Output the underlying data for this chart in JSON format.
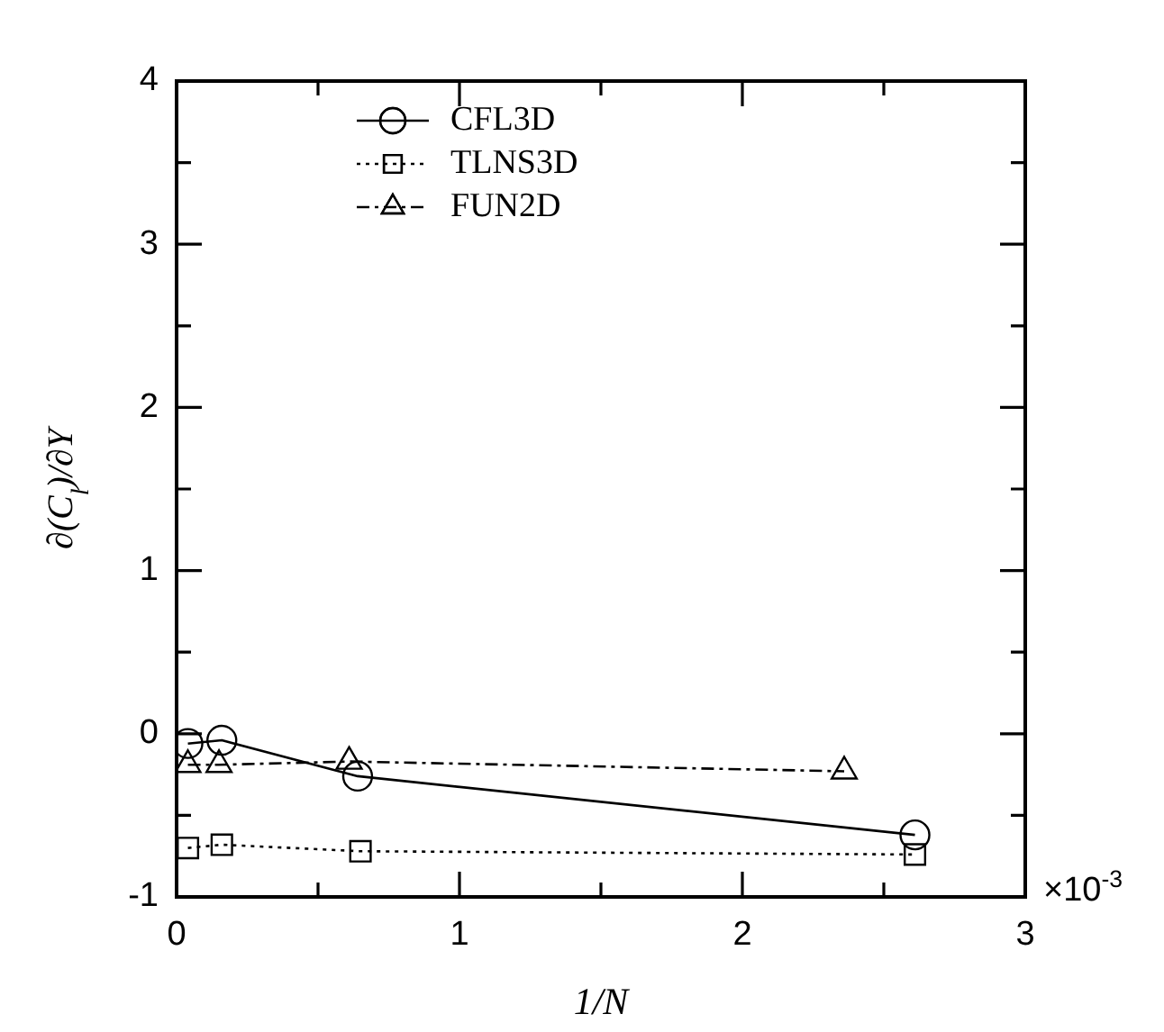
{
  "chart_data": {
    "type": "line",
    "xlabel": "1/N",
    "ylabel": "∂(C$_{l}$)/∂Y",
    "annotations": [
      "×10$^{-3}$"
    ],
    "xlim": [
      0,
      3
    ],
    "xticks": [
      0,
      {
        "value": 0.5,
        "label": null
      },
      1,
      {
        "value": 1.5,
        "label": null
      },
      2,
      {
        "value": 2.5,
        "label": null
      },
      3
    ],
    "ylim": [
      -1,
      4
    ],
    "yticks": [
      -1,
      {
        "value": -0.5,
        "label": null
      },
      0,
      {
        "value": 0.5,
        "label": null
      },
      1,
      {
        "value": 1.5,
        "label": null
      },
      2,
      {
        "value": 2.5,
        "label": null
      },
      3,
      {
        "value": 3.5,
        "label": null
      },
      4
    ],
    "grid": false,
    "legend": "top left",
    "series": [
      {
        "name": "CFL3D",
        "color": "#000000",
        "marker": "circle",
        "line_style": "solid",
        "x": [
          0.04,
          0.16,
          0.64,
          2.61
        ],
        "values": [
          -0.06,
          -0.04,
          -0.26,
          -0.62
        ]
      },
      {
        "name": "TLNS3D",
        "color": "#000000",
        "marker": "square",
        "line_style": "dotted",
        "x": [
          0.04,
          0.16,
          0.65,
          2.61
        ],
        "values": [
          -0.7,
          -0.68,
          -0.72,
          -0.74
        ]
      },
      {
        "name": "FUN2D",
        "color": "#000000",
        "marker": "triangle",
        "line_style": "dashed",
        "x": [
          0.04,
          0.15,
          0.61,
          2.36
        ],
        "values": [
          -0.19,
          -0.19,
          -0.17,
          -0.23
        ]
      }
    ]
  }
}
